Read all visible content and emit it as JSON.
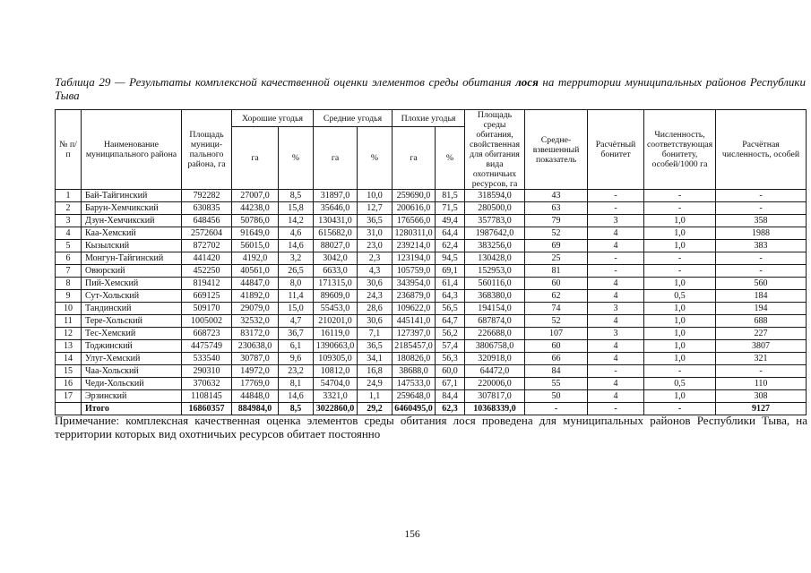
{
  "title": {
    "prefix": "Таблица 29 — Результаты комплексной качественной оценки элементов среды обитания ",
    "emphasis": "лося",
    "suffix": " на территории муниципальных районов Республики Тыва"
  },
  "table": {
    "headers": {
      "num": "№ п/п",
      "district": "Наименование муниципального района",
      "district_area": "Площадь муници­пального района, га",
      "good": "Хорошие угодья",
      "medium": "Средние угодья",
      "bad": "Плохие угодья",
      "ha": "га",
      "pct": "%",
      "habitat_area": "Площадь среды обитания, свойственная для обитания вида охотничьих ресурсов, га",
      "weighted": "Средне-взвешенный показатель",
      "bonitet": "Расчётный бонитет",
      "density": "Численность, соответству­ющая бонитету, особей/1000 га",
      "calc_number": "Расчётная численность, особей"
    },
    "column_keys": [
      "num",
      "district",
      "district_area",
      "good_ha",
      "good_pct",
      "medium_ha",
      "medium_pct",
      "bad_ha",
      "bad_pct",
      "habitat_area",
      "weighted",
      "bonitet",
      "density",
      "calc_number"
    ],
    "rows": [
      [
        "1",
        "Бай-Тайгинский",
        "792282",
        "27007,0",
        "8,5",
        "31897,0",
        "10,0",
        "259690,0",
        "81,5",
        "318594,0",
        "43",
        "-",
        "-",
        "-"
      ],
      [
        "2",
        "Барун-Хемчикский",
        "630835",
        "44238,0",
        "15,8",
        "35646,0",
        "12,7",
        "200616,0",
        "71,5",
        "280500,0",
        "63",
        "-",
        "-",
        "-"
      ],
      [
        "3",
        "Дзун-Хемчикский",
        "648456",
        "50786,0",
        "14,2",
        "130431,0",
        "36,5",
        "176566,0",
        "49,4",
        "357783,0",
        "79",
        "3",
        "1,0",
        "358"
      ],
      [
        "4",
        "Каа-Хемский",
        "2572604",
        "91649,0",
        "4,6",
        "615682,0",
        "31,0",
        "1280311,0",
        "64,4",
        "1987642,0",
        "52",
        "4",
        "1,0",
        "1988"
      ],
      [
        "5",
        "Кызылский",
        "872702",
        "56015,0",
        "14,6",
        "88027,0",
        "23,0",
        "239214,0",
        "62,4",
        "383256,0",
        "69",
        "4",
        "1,0",
        "383"
      ],
      [
        "6",
        "Монгун-Тайгинский",
        "441420",
        "4192,0",
        "3,2",
        "3042,0",
        "2,3",
        "123194,0",
        "94,5",
        "130428,0",
        "25",
        "-",
        "-",
        "-"
      ],
      [
        "7",
        "Овюрский",
        "452250",
        "40561,0",
        "26,5",
        "6633,0",
        "4,3",
        "105759,0",
        "69,1",
        "152953,0",
        "81",
        "-",
        "-",
        "-"
      ],
      [
        "8",
        "Пий-Хемский",
        "819412",
        "44847,0",
        "8,0",
        "171315,0",
        "30,6",
        "343954,0",
        "61,4",
        "560116,0",
        "60",
        "4",
        "1,0",
        "560"
      ],
      [
        "9",
        "Сут-Хольский",
        "669125",
        "41892,0",
        "11,4",
        "89609,0",
        "24,3",
        "236879,0",
        "64,3",
        "368380,0",
        "62",
        "4",
        "0,5",
        "184"
      ],
      [
        "10",
        "Тандинский",
        "509170",
        "29079,0",
        "15,0",
        "55453,0",
        "28,6",
        "109622,0",
        "56,5",
        "194154,0",
        "74",
        "3",
        "1,0",
        "194"
      ],
      [
        "11",
        "Тере-Хольский",
        "1005002",
        "32532,0",
        "4,7",
        "210201,0",
        "30,6",
        "445141,0",
        "64,7",
        "687874,0",
        "52",
        "4",
        "1,0",
        "688"
      ],
      [
        "12",
        "Тес-Хемский",
        "668723",
        "83172,0",
        "36,7",
        "16119,0",
        "7,1",
        "127397,0",
        "56,2",
        "226688,0",
        "107",
        "3",
        "1,0",
        "227"
      ],
      [
        "13",
        "Тоджинский",
        "4475749",
        "230638,0",
        "6,1",
        "1390663,0",
        "36,5",
        "2185457,0",
        "57,4",
        "3806758,0",
        "60",
        "4",
        "1,0",
        "3807"
      ],
      [
        "14",
        "Улуг-Хемский",
        "533540",
        "30787,0",
        "9,6",
        "109305,0",
        "34,1",
        "180826,0",
        "56,3",
        "320918,0",
        "66",
        "4",
        "1,0",
        "321"
      ],
      [
        "15",
        "Чаа-Хольский",
        "290310",
        "14972,0",
        "23,2",
        "10812,0",
        "16,8",
        "38688,0",
        "60,0",
        "64472,0",
        "84",
        "-",
        "-",
        "-"
      ],
      [
        "16",
        "Чеди-Хольский",
        "370632",
        "17769,0",
        "8,1",
        "54704,0",
        "24,9",
        "147533,0",
        "67,1",
        "220006,0",
        "55",
        "4",
        "0,5",
        "110"
      ],
      [
        "17",
        "Эрзинский",
        "1108145",
        "44848,0",
        "14,6",
        "3321,0",
        "1,1",
        "259648,0",
        "84,4",
        "307817,0",
        "50",
        "4",
        "1,0",
        "308"
      ]
    ],
    "totals": [
      "",
      "Итого",
      "16860357",
      "884984,0",
      "8,5",
      "3022860,0",
      "29,2",
      "6460495,0",
      "62,3",
      "10368339,0",
      "-",
      "-",
      "-",
      "9127"
    ]
  },
  "note": "Примечание: комплексная качественная оценка элементов среды обитания лося проведена для муниципальных районов Республики Тыва, на территории которых вид охотничьих ресурсов обитает постоянно",
  "page": {
    "number": "156"
  }
}
